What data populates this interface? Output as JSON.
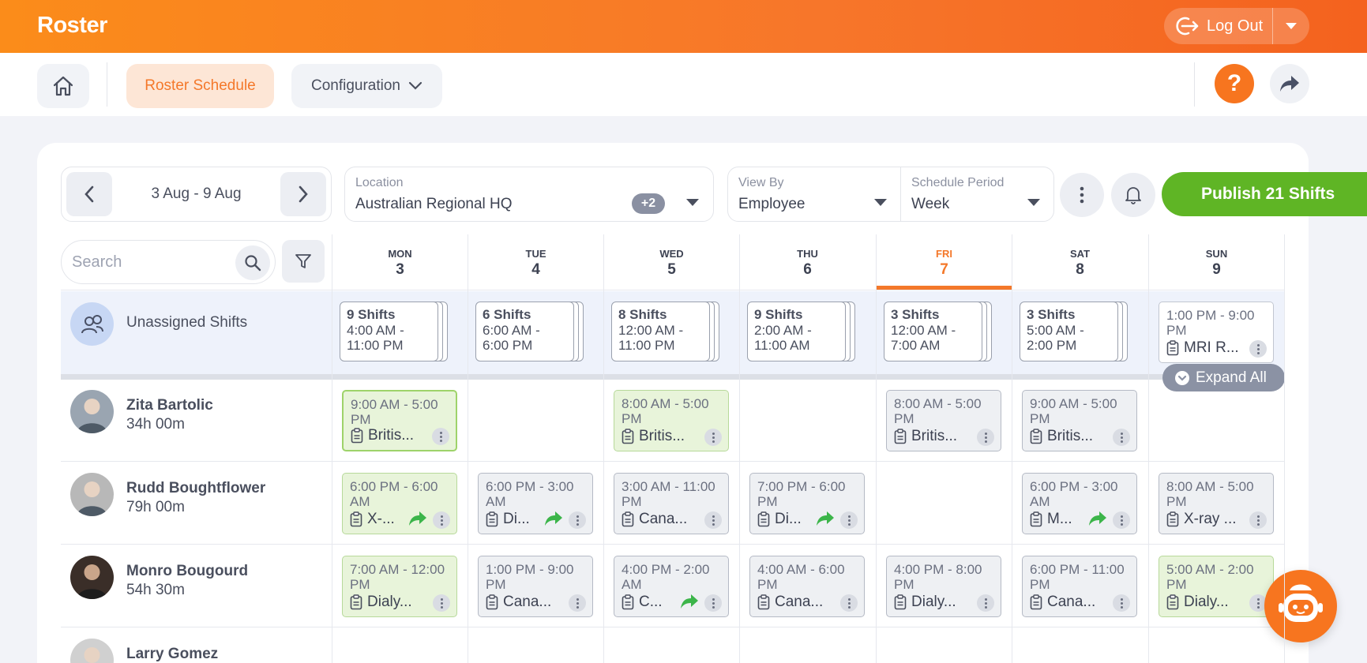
{
  "app": {
    "title": "Roster"
  },
  "header": {
    "logout_label": "Log Out"
  },
  "nav": {
    "roster_schedule": "Roster Schedule",
    "configuration": "Configuration",
    "help_glyph": "?"
  },
  "toolbar": {
    "date_range": "3 Aug - 9 Aug",
    "location_label": "Location",
    "location_value": "Australian Regional HQ",
    "location_extra": "+2",
    "viewby_label": "View By",
    "viewby_value": "Employee",
    "period_label": "Schedule Period",
    "period_value": "Week",
    "publish_label": "Publish 21 Shifts"
  },
  "search": {
    "placeholder": "Search"
  },
  "days": [
    {
      "dow": "MON",
      "num": "3"
    },
    {
      "dow": "TUE",
      "num": "4"
    },
    {
      "dow": "WED",
      "num": "5"
    },
    {
      "dow": "THU",
      "num": "6"
    },
    {
      "dow": "FRI",
      "num": "7"
    },
    {
      "dow": "SAT",
      "num": "8"
    },
    {
      "dow": "SUN",
      "num": "9"
    }
  ],
  "unassigned": {
    "label": "Unassigned Shifts",
    "stacks": [
      {
        "count": "9 Shifts",
        "time": "4:00 AM - 11:00 PM"
      },
      {
        "count": "6 Shifts",
        "time": "6:00 AM - 6:00 PM"
      },
      {
        "count": "8 Shifts",
        "time": "12:00 AM - 11:00 PM"
      },
      {
        "count": "9 Shifts",
        "time": "2:00 AM - 11:00 AM"
      },
      {
        "count": "3 Shifts",
        "time": "12:00 AM - 7:00 AM"
      },
      {
        "count": "3 Shifts",
        "time": "5:00 AM - 2:00 PM"
      }
    ],
    "single": {
      "time": "1:00 PM - 9:00 PM",
      "loc": "MRI R..."
    }
  },
  "expand_all_label": "Expand All",
  "employees": [
    {
      "name": "Zita Bartolic",
      "hours": "34h 00m",
      "shifts": [
        {
          "time": "9:00 AM - 5:00 PM",
          "loc": "Britis..."
        },
        null,
        {
          "time": "8:00 AM - 5:00 PM",
          "loc": "Britis..."
        },
        null,
        {
          "time": "8:00 AM - 5:00 PM",
          "loc": "Britis..."
        },
        {
          "time": "9:00 AM - 5:00 PM",
          "loc": "Britis..."
        },
        null
      ]
    },
    {
      "name": "Rudd Boughtflower",
      "hours": "79h 00m",
      "shifts": [
        {
          "time": "6:00 PM - 6:00 AM",
          "loc": "X-..."
        },
        {
          "time": "6:00 PM - 3:00 AM",
          "loc": "Di..."
        },
        {
          "time": "3:00 AM - 11:00 PM",
          "loc": "Cana..."
        },
        {
          "time": "7:00 PM - 6:00 PM",
          "loc": "Di..."
        },
        null,
        {
          "time": "6:00 PM - 3:00 AM",
          "loc": "M..."
        },
        {
          "time": "8:00 AM - 5:00 PM",
          "loc": "X-ray ..."
        }
      ]
    },
    {
      "name": "Monro Bougourd",
      "hours": "54h 30m",
      "shifts": [
        {
          "time": "7:00 AM - 12:00 PM",
          "loc": "Dialy..."
        },
        {
          "time": "1:00 PM - 9:00 PM",
          "loc": "Cana..."
        },
        {
          "time": "4:00 PM - 2:00 AM",
          "loc": "C..."
        },
        {
          "time": "4:00 AM - 6:00 PM",
          "loc": "Cana..."
        },
        {
          "time": "4:00 PM - 8:00 PM",
          "loc": "Dialy..."
        },
        {
          "time": "6:00 PM - 11:00 PM",
          "loc": "Cana..."
        },
        {
          "time": "5:00 AM - 2:00 PM",
          "loc": "Dialy..."
        }
      ]
    },
    {
      "name": "Larry Gomez",
      "hours": "",
      "shifts": []
    }
  ],
  "colors": {
    "accent": "#f4782a",
    "publish": "#5fb525",
    "shift_green": "#e8f4da",
    "shift_grey": "#eef0f3"
  }
}
